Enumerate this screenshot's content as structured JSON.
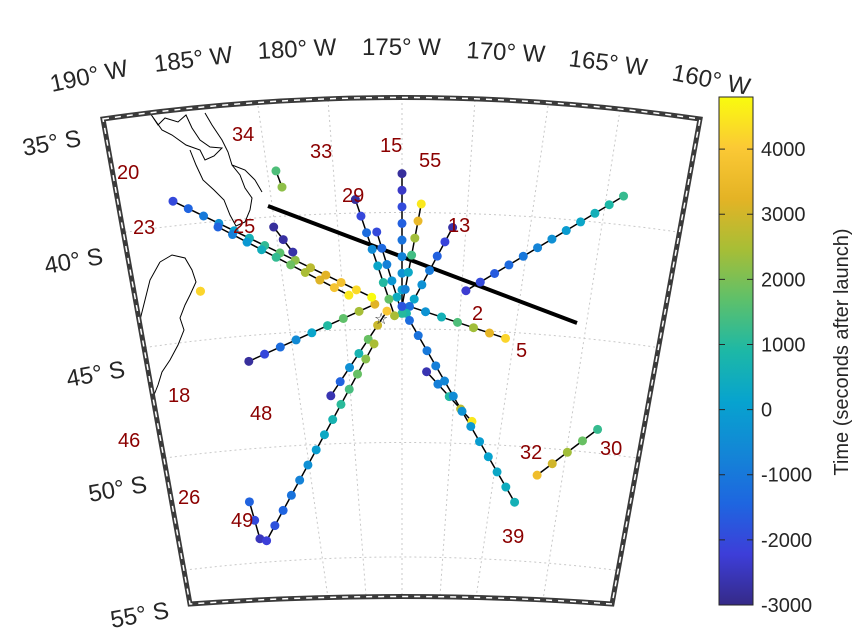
{
  "chart_data": {
    "type": "scatter",
    "projection": "conic",
    "lon_ticks": [
      "190° W",
      "185° W",
      "180° W",
      "175° W",
      "170° W",
      "165° W",
      "160° W"
    ],
    "lat_ticks": [
      "35° S",
      "40° S",
      "45° S",
      "50° S",
      "55° S"
    ],
    "lon_range": [
      -190,
      -160
    ],
    "lat_range": [
      -55,
      -35
    ],
    "grid": true,
    "colorbar": {
      "label": "Time (seconds after launch)",
      "ticks": [
        4000,
        3000,
        2000,
        1000,
        0,
        -1000,
        -2000,
        -3000
      ],
      "tick_labels": [
        "4000",
        "3000",
        "2000",
        "1000",
        "0",
        "-1000",
        "-2000",
        "-3000"
      ],
      "range": [
        -3000,
        4800
      ],
      "colormap": "parula",
      "location": "right"
    },
    "launch_site": {
      "lon": -175.4,
      "lat": -42.3,
      "marker": "star"
    },
    "trajectory_line": {
      "from": [
        -179.6,
        -38.4
      ],
      "to": [
        -166.2,
        -42.8
      ]
    },
    "tracks": [
      {
        "id": "2",
        "start": [
          -170.8,
          -41.7
        ],
        "end": [
          -161.3,
          -37.4
        ],
        "t0": -2300,
        "t1": 1200
      },
      {
        "id": "5",
        "start": [
          -174.5,
          -42.4
        ],
        "end": [
          -168.0,
          -43.7
        ],
        "t0": -1200,
        "t1": 4200
      },
      {
        "id": "13",
        "start": [
          -171.8,
          -39.0
        ],
        "end": [
          -174.7,
          -42.7
        ],
        "t0": -2700,
        "t1": 800
      },
      {
        "id": "15",
        "start": [
          -175.0,
          -36.7
        ],
        "end": [
          -175.0,
          -42.4
        ],
        "t0": -2800,
        "t1": 500
      },
      {
        "id": "18",
        "start": [
          -185.5,
          -44.6
        ],
        "end": [
          -176.8,
          -42.3
        ],
        "t0": -2800,
        "t1": 3200
      },
      {
        "id": "20",
        "start": [
          -189.2,
          -37.6
        ],
        "end": [
          -177.0,
          -42.0
        ],
        "t0": -2000,
        "t1": 4800
      },
      {
        "id": "23",
        "start": [
          -186.6,
          -38.8
        ],
        "end": [
          -178.5,
          -41.9
        ],
        "t0": -1500,
        "t1": 4500
      },
      {
        "id": "25",
        "start": [
          -183.1,
          -38.9
        ],
        "end": [
          -182.0,
          -40.0
        ],
        "t0": -2800,
        "t1": -2700
      },
      {
        "id": "26",
        "start": [
          -186.5,
          -50.6
        ],
        "end": [
          -186.0,
          -52.2
        ],
        "t0": -1500,
        "t1": -2500
      },
      {
        "id": "29",
        "start": [
          -176.6,
          -39.2
        ],
        "end": [
          -175.0,
          -42.7
        ],
        "t0": -2000,
        "t1": 1000
      },
      {
        "id": "30",
        "start": [
          -165.0,
          -49.5
        ],
        "end": [
          -161.0,
          -47.4
        ],
        "t0": 3600,
        "t1": 1200
      },
      {
        "id": "32",
        "start": [
          -173.3,
          -45.2
        ],
        "end": [
          -170.0,
          -47.3
        ],
        "t0": -2600,
        "t1": 4500
      },
      {
        "id": "33",
        "start": [
          -177.9,
          -37.8
        ],
        "end": [
          -175.5,
          -42.8
        ],
        "t0": -2800,
        "t1": 2500
      },
      {
        "id": "34",
        "start": [
          -182.7,
          -36.5
        ],
        "end": [
          -182.4,
          -37.2
        ],
        "t0": 1500,
        "t1": 2200
      },
      {
        "id": "39",
        "start": [
          -174.5,
          -43.0
        ],
        "end": [
          -166.5,
          -50.7
        ],
        "t0": -1300,
        "t1": 600
      },
      {
        "id": "46",
        "start": [
          -188.2,
          -41.5
        ],
        "end": [
          -188.2,
          -41.5
        ],
        "t0": 4200,
        "t1": 4200
      },
      {
        "id": "48",
        "start": [
          -180.0,
          -46.2
        ],
        "end": [
          -176.0,
          -42.6
        ],
        "t0": -2600,
        "t1": 4000
      },
      {
        "id": "49",
        "start": [
          -185.5,
          -52.3
        ],
        "end": [
          -176.9,
          -44.0
        ],
        "t0": -2200,
        "t1": 2500
      },
      {
        "id": "55",
        "start": [
          -173.8,
          -38.0
        ],
        "end": [
          -175.0,
          -42.4
        ],
        "t0": 4500,
        "t1": -1800
      }
    ]
  },
  "colors": {
    "track_label": "#8b0000",
    "frame": "#333333",
    "grid": "#c8c8c8",
    "coast": "#000000"
  }
}
